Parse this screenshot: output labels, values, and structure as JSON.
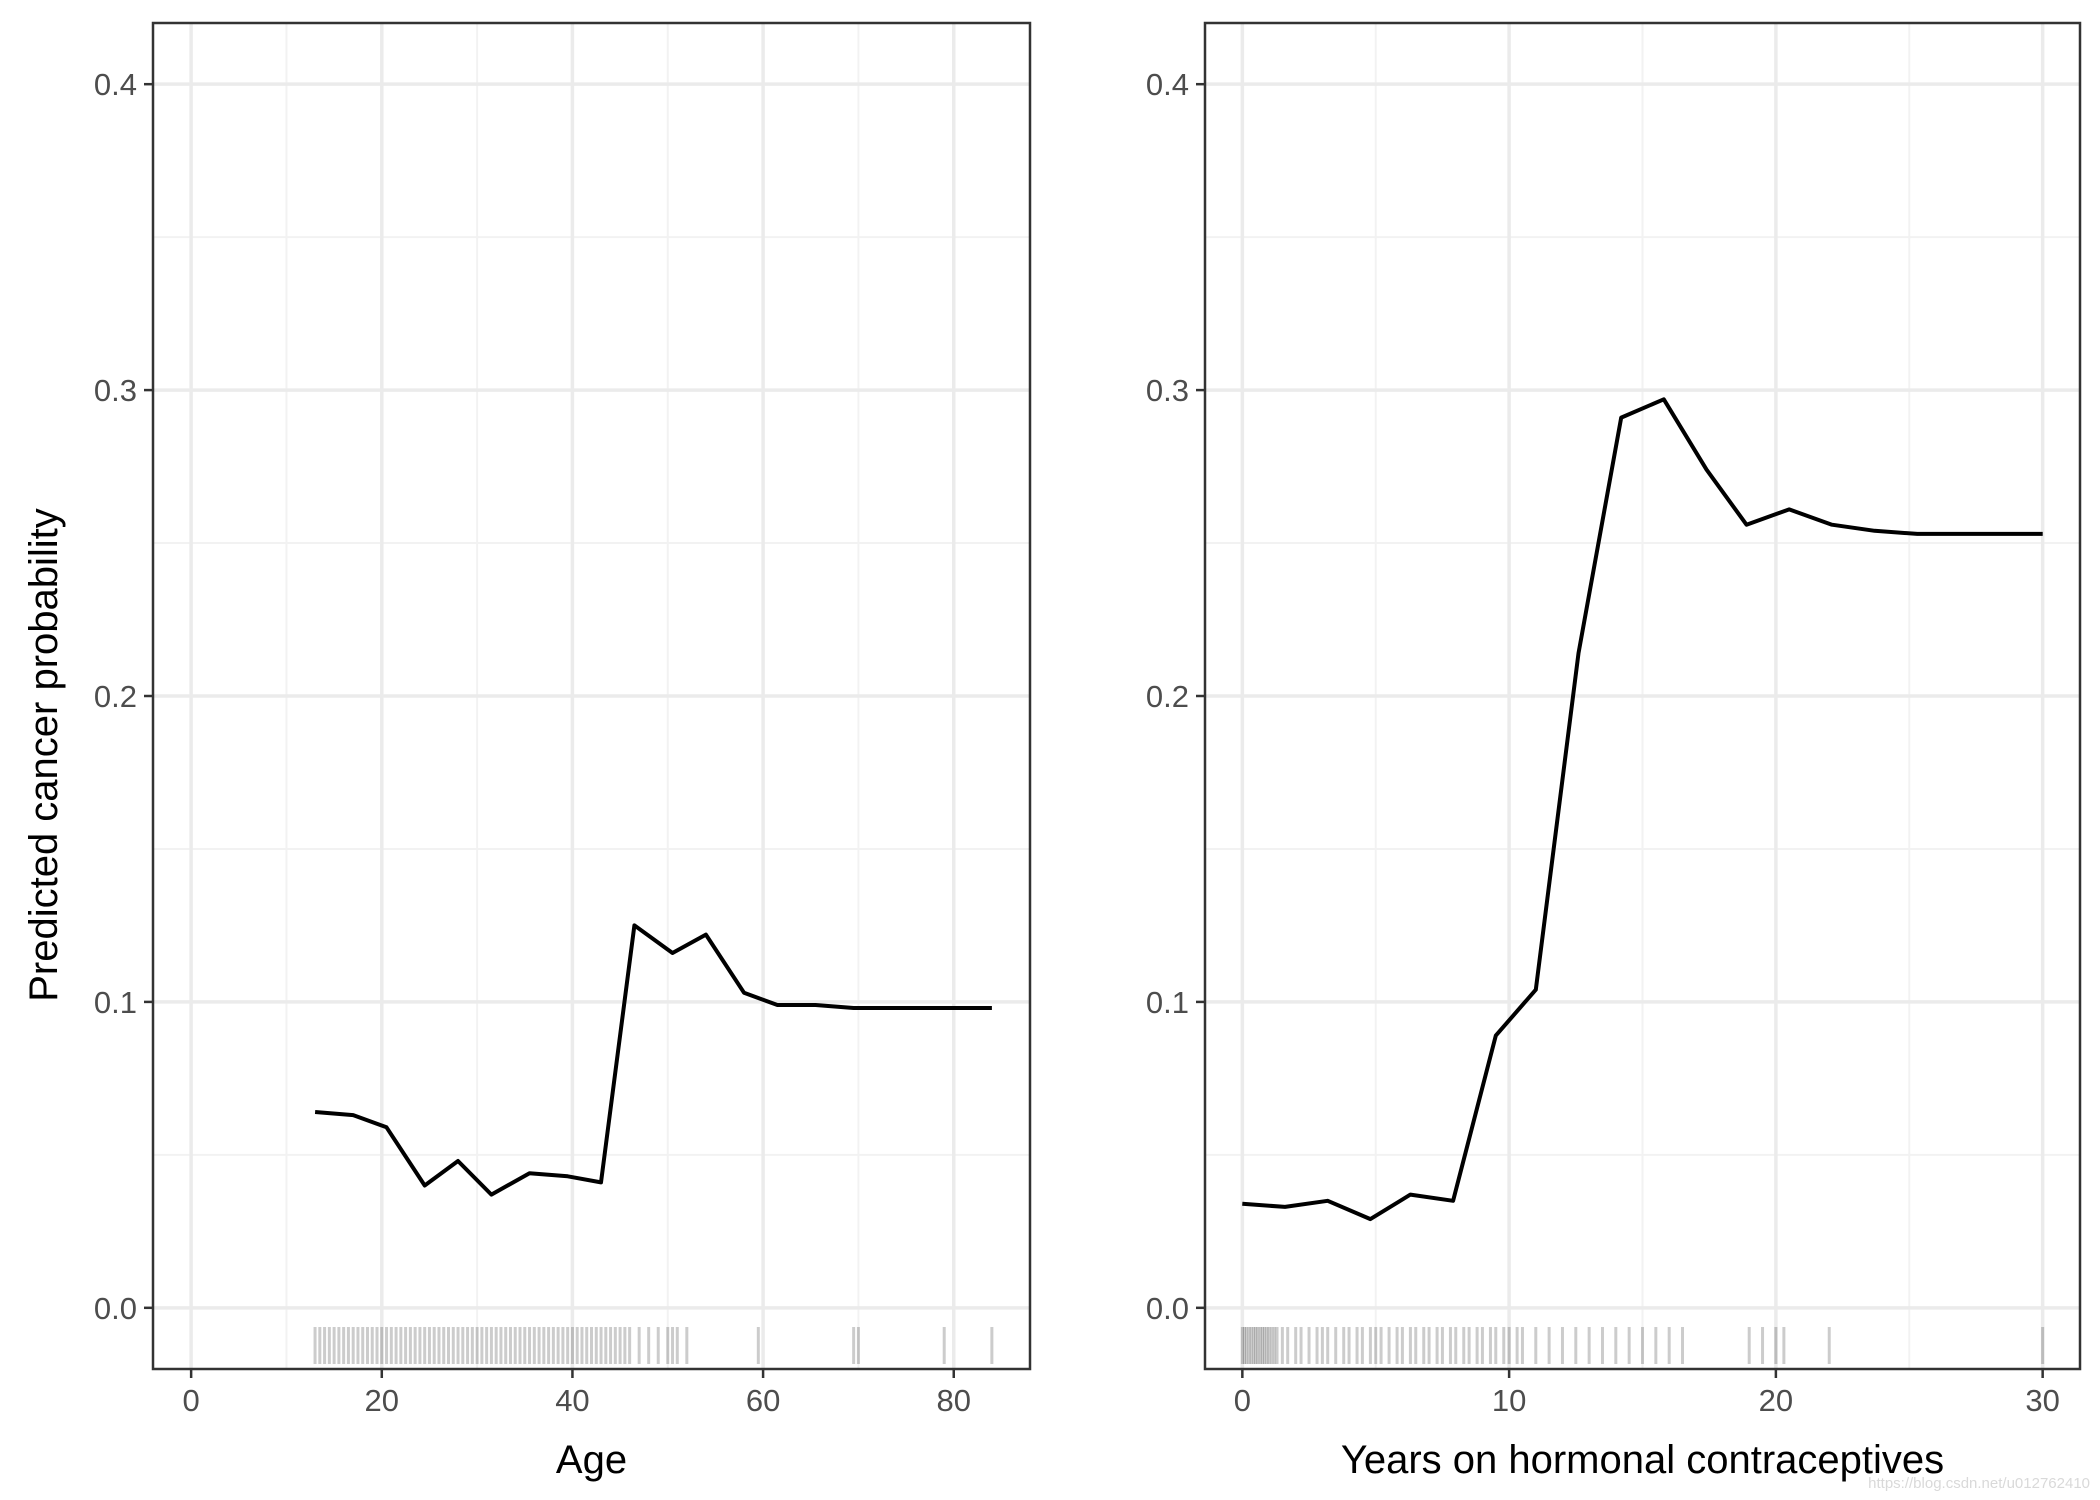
{
  "shared": {
    "ylabel": "Predicted cancer probability",
    "ylim": [
      -0.02,
      0.42
    ],
    "y_ticks": [
      0.0,
      0.1,
      0.2,
      0.3,
      0.4
    ],
    "y_tick_labels": [
      "0.0",
      "0.1",
      "0.2",
      "0.3",
      "0.4"
    ],
    "colors": {
      "line": "#000000",
      "grid_major": "#ebebeb",
      "grid_minor": "#f2f2f2",
      "panel_border": "#333333",
      "tick_text": "#4d4d4d",
      "rug": "#000000"
    },
    "grid": true,
    "watermark": "https://blog.csdn.net/u012762410"
  },
  "chart_data": [
    {
      "type": "line",
      "title": "",
      "xlabel": "Age",
      "ylabel": "Predicted cancer probability",
      "xlim": [
        -4,
        88
      ],
      "x_ticks": [
        0,
        20,
        40,
        60,
        80
      ],
      "x_tick_labels": [
        "0",
        "20",
        "40",
        "60",
        "80"
      ],
      "ylim": [
        -0.02,
        0.42
      ],
      "series": [
        {
          "x": [
            13,
            17,
            20.5,
            24.5,
            28,
            31.5,
            35.5,
            39.5,
            43,
            46.5,
            50.5,
            54,
            58,
            61.5,
            65.5,
            69.5,
            73,
            77,
            80.5,
            84
          ],
          "y": [
            0.064,
            0.063,
            0.059,
            0.04,
            0.048,
            0.037,
            0.044,
            0.043,
            0.041,
            0.125,
            0.116,
            0.122,
            0.103,
            0.099,
            0.099,
            0.098,
            0.098,
            0.098,
            0.098,
            0.098
          ]
        }
      ],
      "rug_x": [
        13,
        13.5,
        14,
        14.5,
        15,
        15.5,
        16,
        16.5,
        17,
        17.5,
        18,
        18.5,
        19,
        19.5,
        20,
        20.5,
        21,
        21.5,
        22,
        22.5,
        23,
        23.5,
        24,
        24.5,
        25,
        25.5,
        26,
        26.5,
        27,
        27.5,
        28,
        28.5,
        29,
        29.5,
        30,
        30.5,
        31,
        31.5,
        32,
        32.5,
        33,
        33.5,
        34,
        34.5,
        35,
        35.5,
        36,
        36.5,
        37,
        37.5,
        38,
        38.5,
        39,
        39.5,
        40,
        40.5,
        41,
        41.5,
        42,
        42.5,
        43,
        43.5,
        44,
        44.5,
        45,
        45.5,
        46,
        47,
        48,
        49,
        50,
        50.5,
        51,
        52,
        59.5,
        69.5,
        70,
        79,
        84
      ]
    },
    {
      "type": "line",
      "title": "",
      "xlabel": "Years on hormonal contraceptives",
      "ylabel": "",
      "xlim": [
        -1.4,
        31.4
      ],
      "x_ticks": [
        0,
        10,
        20,
        30
      ],
      "x_tick_labels": [
        "0",
        "10",
        "20",
        "30"
      ],
      "ylim": [
        -0.02,
        0.42
      ],
      "series": [
        {
          "x": [
            0,
            1.6,
            3.2,
            4.8,
            6.3,
            7.9,
            9.5,
            11,
            12.6,
            14.2,
            15.8,
            17.4,
            18.9,
            20.5,
            22.1,
            23.7,
            25.3,
            26.8,
            28.4,
            30
          ],
          "y": [
            0.034,
            0.033,
            0.035,
            0.029,
            0.037,
            0.035,
            0.089,
            0.104,
            0.214,
            0.291,
            0.297,
            0.274,
            0.256,
            0.261,
            0.256,
            0.254,
            0.253,
            0.253,
            0.253,
            0.253
          ]
        }
      ],
      "rug_x": [
        0,
        0.08,
        0.16,
        0.25,
        0.33,
        0.42,
        0.5,
        0.58,
        0.67,
        0.75,
        0.83,
        0.92,
        1,
        1.1,
        1.2,
        1.3,
        1.5,
        1.7,
        2,
        2.2,
        2.5,
        2.8,
        3,
        3.2,
        3.5,
        3.8,
        4,
        4.3,
        4.5,
        4.8,
        5,
        5.2,
        5.5,
        5.8,
        6,
        6.3,
        6.5,
        6.8,
        7,
        7.3,
        7.5,
        7.8,
        8,
        8.3,
        8.5,
        8.8,
        9,
        9.3,
        9.5,
        9.8,
        10,
        10.3,
        10.5,
        11,
        11.5,
        12,
        12.5,
        13,
        13.5,
        14,
        14.5,
        15,
        15.5,
        16,
        16.5,
        19,
        19.5,
        20,
        20.3,
        22,
        30
      ]
    }
  ]
}
